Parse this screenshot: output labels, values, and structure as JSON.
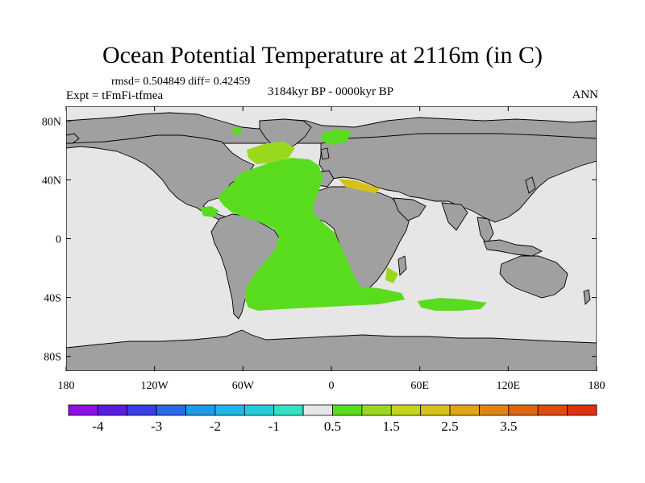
{
  "chart_data": {
    "type": "heatmap",
    "title": "Ocean Potential Temperature at 2116m (in C)",
    "stats": "rmsd= 0.504849 diff= 0.42459",
    "experiment": "Expt = tFmFi-tfmea",
    "period": "3184kyr BP - 0000kyr BP",
    "season": "ANN",
    "x_ticks": [
      {
        "value": -180,
        "label": "180"
      },
      {
        "value": -120,
        "label": "120W"
      },
      {
        "value": -60,
        "label": "60W"
      },
      {
        "value": 0,
        "label": "0"
      },
      {
        "value": 60,
        "label": "60E"
      },
      {
        "value": 120,
        "label": "120E"
      },
      {
        "value": 180,
        "label": "180"
      }
    ],
    "y_ticks": [
      {
        "value": 80,
        "label": "80N"
      },
      {
        "value": 40,
        "label": "40N"
      },
      {
        "value": 0,
        "label": "0"
      },
      {
        "value": -40,
        "label": "40S"
      },
      {
        "value": -80,
        "label": "80S"
      }
    ],
    "xlim": [
      -180,
      180
    ],
    "ylim": [
      -90,
      90
    ],
    "colorbar": {
      "colors": [
        "#8b10e6",
        "#5a1ee0",
        "#3a3ee6",
        "#2a6ae8",
        "#1e9ae6",
        "#1eb6e6",
        "#22ccdc",
        "#34e0c6",
        "#e6e6e6",
        "#5adc1e",
        "#9ad81e",
        "#c6d418",
        "#d8c018",
        "#e0a414",
        "#e08412",
        "#e06410",
        "#e04a10",
        "#e03010"
      ],
      "labels": [
        {
          "boundary": 1,
          "text": "-4"
        },
        {
          "boundary": 3,
          "text": "-3"
        },
        {
          "boundary": 5,
          "text": "-2"
        },
        {
          "boundary": 7,
          "text": "-1"
        },
        {
          "boundary": 9,
          "text": "0.5"
        },
        {
          "boundary": 11,
          "text": "1.5"
        },
        {
          "boundary": 13,
          "text": "2.5"
        },
        {
          "boundary": 15,
          "text": "3.5"
        }
      ]
    },
    "colors": {
      "land": "#a0a0a0",
      "ocean_neutral": "#e6e6e6",
      "anomaly_main": "#5adc1e",
      "anomaly_warm": "#9ad81e",
      "anomaly_hot": "#d8c018"
    }
  }
}
